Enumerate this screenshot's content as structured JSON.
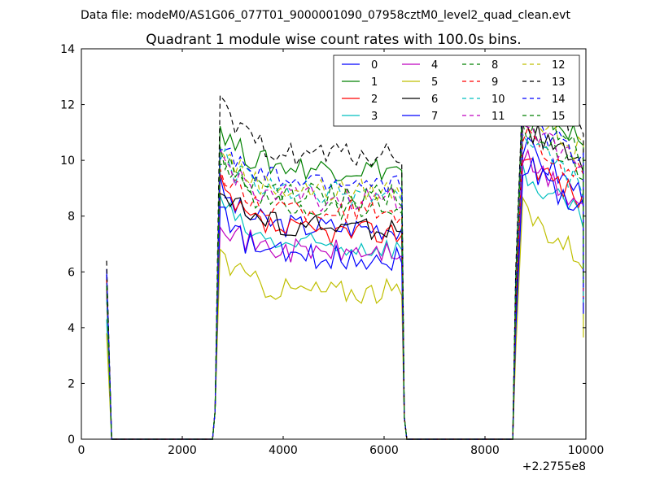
{
  "suptitle": "Data file: modeM0/AS1G06_077T01_9000001090_07958cztM0_level2_quad_clean.evt",
  "chart_data": {
    "type": "line",
    "title": "Quadrant 1 module wise count rates with 100.0s bins.",
    "xlabel": "",
    "ylabel": "",
    "xlim": [
      0,
      10000
    ],
    "ylim": [
      0,
      14
    ],
    "x_offset_label": "+2.2755e8",
    "xticks": [
      "0",
      "2000",
      "4000",
      "6000",
      "8000",
      "10000"
    ],
    "yticks": [
      "0",
      "2",
      "4",
      "6",
      "8",
      "10",
      "12",
      "14"
    ],
    "grid": false,
    "legend_position": "top-right",
    "legend_columns": 4,
    "bin_seconds": 100,
    "segments": [
      {
        "x_start": 500,
        "x_end": 600,
        "x_drop": 600
      },
      {
        "x_start": 2650,
        "x_end": 6350,
        "x_drop": 6400
      },
      {
        "x_start": 8550,
        "x_end": 9950,
        "x_drop": 9950
      }
    ],
    "series": [
      {
        "name": "0",
        "color": "#0000ff",
        "style": "solid",
        "peak": 6.1,
        "level": 7.6,
        "late": 9.6
      },
      {
        "name": "1",
        "color": "#008000",
        "style": "solid",
        "peak": 5.4,
        "level": 9.7,
        "late": 11.4
      },
      {
        "name": "2",
        "color": "#ff0000",
        "style": "solid",
        "peak": 5.3,
        "level": 7.4,
        "late": 9.3
      },
      {
        "name": "3",
        "color": "#00bfbf",
        "style": "solid",
        "peak": 4.3,
        "level": 6.9,
        "late": 8.6
      },
      {
        "name": "4",
        "color": "#bf00bf",
        "style": "solid",
        "peak": 5.8,
        "level": 6.7,
        "late": 9.1
      },
      {
        "name": "5",
        "color": "#bfbf00",
        "style": "solid",
        "peak": 3.8,
        "level": 5.3,
        "late": 7.3
      },
      {
        "name": "6",
        "color": "#000000",
        "style": "solid",
        "peak": 5.9,
        "level": 7.6,
        "late": 10.4
      },
      {
        "name": "7",
        "color": "#0000ff",
        "style": "solid",
        "peak": 5.5,
        "level": 6.5,
        "late": 9.0
      },
      {
        "name": "8",
        "color": "#008000",
        "style": "dashed",
        "peak": 5.6,
        "level": 8.3,
        "late": 10.3
      },
      {
        "name": "9",
        "color": "#ff0000",
        "style": "dashed",
        "peak": 5.7,
        "level": 8.2,
        "late": 10.1
      },
      {
        "name": "10",
        "color": "#00bfbf",
        "style": "dashed",
        "peak": 5.0,
        "level": 8.8,
        "late": 9.8
      },
      {
        "name": "11",
        "color": "#bf00bf",
        "style": "dashed",
        "peak": 5.2,
        "level": 8.6,
        "late": 10.6
      },
      {
        "name": "12",
        "color": "#bfbf00",
        "style": "dashed",
        "peak": 5.6,
        "level": 8.9,
        "late": 11.0
      },
      {
        "name": "13",
        "color": "#000000",
        "style": "dashed",
        "peak": 6.4,
        "level": 10.2,
        "late": 11.9
      },
      {
        "name": "14",
        "color": "#0000ff",
        "style": "dashed",
        "peak": 5.9,
        "level": 9.2,
        "late": 10.8
      },
      {
        "name": "15",
        "color": "#008000",
        "style": "dashed",
        "peak": 5.5,
        "level": 8.7,
        "late": 11.2
      }
    ]
  }
}
